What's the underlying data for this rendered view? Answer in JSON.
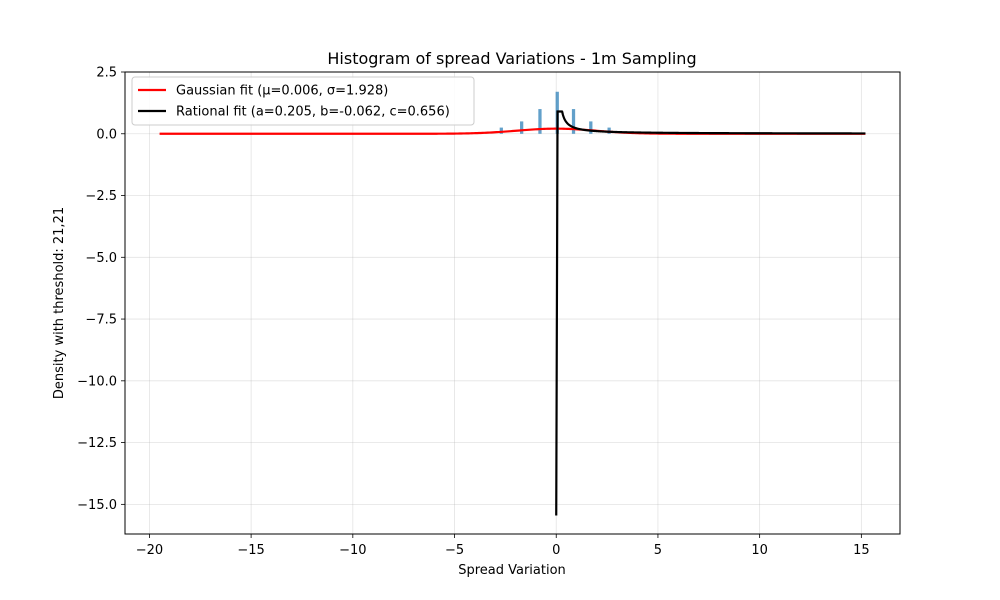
{
  "chart_data": {
    "type": "bar",
    "title": "Histogram of spread Variations - 1m Sampling",
    "xlabel": "Spread Variation",
    "ylabel": "Density with threshold: 21,21",
    "xlim": [
      -21.2,
      16.9
    ],
    "ylim": [
      -16.2,
      2.5
    ],
    "xticks": [
      -20,
      -15,
      -10,
      -5,
      0,
      5,
      10,
      15
    ],
    "xtick_labels": [
      "−20",
      "−15",
      "−10",
      "−5",
      "0",
      "5",
      "10",
      "15"
    ],
    "yticks": [
      2.5,
      0.0,
      -2.5,
      -5.0,
      -7.5,
      -10.0,
      -12.5,
      -15.0
    ],
    "ytick_labels": [
      "2.5",
      "0.0",
      "−2.5",
      "−5.0",
      "−7.5",
      "−10.0",
      "−12.5",
      "−15.0"
    ],
    "grid": true,
    "legend_position": "top-left",
    "histogram": {
      "color": "#1f77b4",
      "bars": [
        {
          "x": -2.7,
          "value": 0.25
        },
        {
          "x": -1.7,
          "value": 0.5
        },
        {
          "x": -0.8,
          "value": 1.0
        },
        {
          "x": 0.05,
          "value": 1.7
        },
        {
          "x": 0.85,
          "value": 1.0
        },
        {
          "x": 1.7,
          "value": 0.5
        },
        {
          "x": 2.6,
          "value": 0.25
        }
      ]
    },
    "series": [
      {
        "name": "Gaussian fit (μ=0.006, σ=1.928)",
        "color": "#ff0000",
        "mu": 0.006,
        "sigma": 1.928,
        "x_range": [
          -19.5,
          15.2
        ]
      },
      {
        "name": "Rational fit (a=0.205, b=-0.062, c=0.656)",
        "color": "#000000",
        "a": 0.205,
        "b": -0.062,
        "c": 0.656,
        "min_value": -15.45,
        "x_range": [
          0.0,
          15.2
        ]
      }
    ]
  }
}
